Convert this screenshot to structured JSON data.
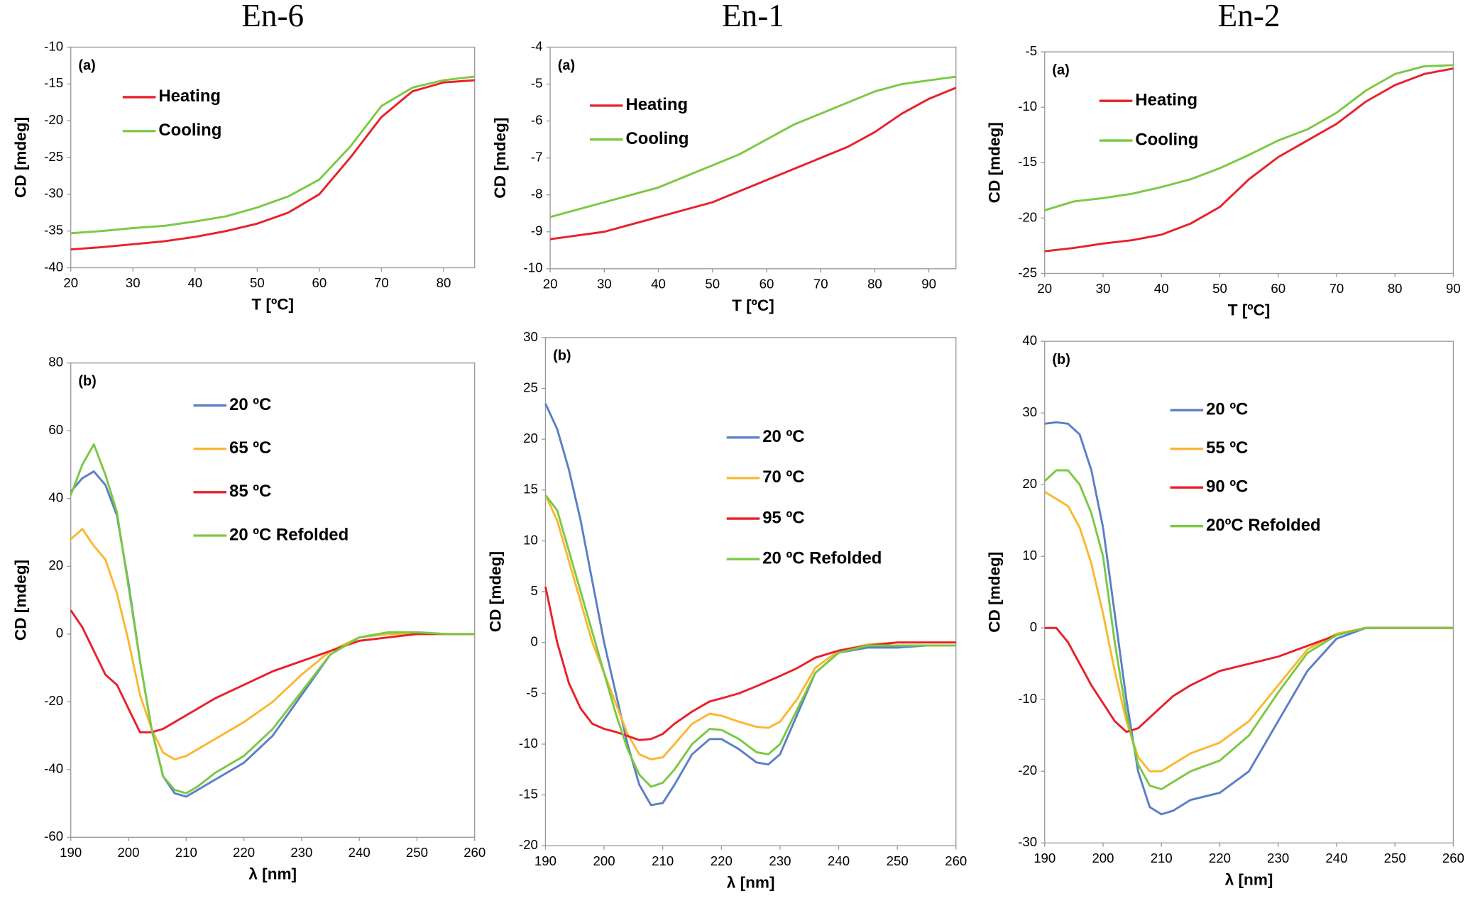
{
  "chart_data": [
    {
      "type": "line",
      "title": "En-6",
      "panel": "(a)",
      "x_label": "T [ºC]",
      "y_label": "CD [mdeg]",
      "x": [
        20,
        25,
        30,
        35,
        40,
        45,
        50,
        55,
        60,
        65,
        70,
        75,
        80,
        85
      ],
      "series": [
        {
          "name": "Heating",
          "color": "#e8212a",
          "values": [
            -37.5,
            -37.2,
            -36.8,
            -36.4,
            -35.8,
            -35,
            -34,
            -32.5,
            -30,
            -25,
            -19.5,
            -16,
            -14.8,
            -14.5
          ]
        },
        {
          "name": "Cooling",
          "color": "#7ac943",
          "values": [
            -35.3,
            -35,
            -34.6,
            -34.3,
            -33.7,
            -33,
            -31.8,
            -30.3,
            -28,
            -23.5,
            -18,
            -15.5,
            -14.5,
            -14
          ]
        }
      ],
      "xlim": [
        20,
        85
      ],
      "ylim": [
        -40,
        -10
      ],
      "xticks": [
        20,
        30,
        40,
        50,
        60,
        70,
        80
      ],
      "yticks": [
        -40,
        -35,
        -30,
        -25,
        -20,
        -15,
        -10
      ]
    },
    {
      "type": "line",
      "title": "En-1",
      "panel": "(a)",
      "x_label": "T [ºC]",
      "y_label": "CD [mdeg]",
      "x": [
        20,
        25,
        30,
        35,
        40,
        45,
        50,
        55,
        60,
        65,
        70,
        75,
        80,
        85,
        90,
        95
      ],
      "series": [
        {
          "name": "Heating",
          "color": "#e8212a",
          "values": [
            -9.2,
            -9.1,
            -9.0,
            -8.8,
            -8.6,
            -8.4,
            -8.2,
            -7.9,
            -7.6,
            -7.3,
            -7.0,
            -6.7,
            -6.3,
            -5.8,
            -5.4,
            -5.1
          ]
        },
        {
          "name": "Cooling",
          "color": "#7ac943",
          "values": [
            -8.6,
            -8.4,
            -8.2,
            -8.0,
            -7.8,
            -7.5,
            -7.2,
            -6.9,
            -6.5,
            -6.1,
            -5.8,
            -5.5,
            -5.2,
            -5.0,
            -4.9,
            -4.8
          ]
        }
      ],
      "xlim": [
        20,
        95
      ],
      "ylim": [
        -10,
        -4
      ],
      "xticks": [
        20,
        30,
        40,
        50,
        60,
        70,
        80,
        90
      ],
      "yticks": [
        -10,
        -9,
        -8,
        -7,
        -6,
        -5,
        -4
      ]
    },
    {
      "type": "line",
      "title": "En-2",
      "panel": "(a)",
      "x_label": "T [ºC]",
      "y_label": "CD [mdeg]",
      "x": [
        20,
        25,
        30,
        35,
        40,
        45,
        50,
        55,
        60,
        65,
        70,
        75,
        80,
        85,
        90
      ],
      "series": [
        {
          "name": "Heating",
          "color": "#e8212a",
          "values": [
            -23,
            -22.7,
            -22.3,
            -22,
            -21.5,
            -20.5,
            -19,
            -16.5,
            -14.5,
            -13,
            -11.5,
            -9.5,
            -8,
            -7,
            -6.5
          ]
        },
        {
          "name": "Cooling",
          "color": "#7ac943",
          "values": [
            -19.3,
            -18.5,
            -18.2,
            -17.8,
            -17.2,
            -16.5,
            -15.5,
            -14.3,
            -13,
            -12,
            -10.5,
            -8.5,
            -7,
            -6.3,
            -6.2
          ]
        }
      ],
      "xlim": [
        20,
        90
      ],
      "ylim": [
        -25,
        -5
      ],
      "xticks": [
        20,
        30,
        40,
        50,
        60,
        70,
        80,
        90
      ],
      "yticks": [
        -25,
        -20,
        -15,
        -10,
        -5
      ]
    },
    {
      "type": "line",
      "panel": "(b)",
      "x_label": "λ [nm]",
      "y_label": "CD [mdeg]",
      "x": [
        190,
        192,
        194,
        196,
        198,
        200,
        202,
        204,
        206,
        208,
        210,
        212,
        215,
        220,
        225,
        230,
        235,
        240,
        245,
        250,
        255,
        260
      ],
      "series": [
        {
          "name": "20 ºC",
          "color": "#5b7fc7",
          "values": [
            42,
            46,
            48,
            44,
            35,
            15,
            -8,
            -28,
            -42,
            -47,
            -48,
            -46,
            -43,
            -38,
            -30,
            -18,
            -6,
            -1,
            0.5,
            0.5,
            0,
            0
          ]
        },
        {
          "name": "65 ºC",
          "color": "#fbb731",
          "values": [
            28,
            31,
            26,
            22,
            12,
            -2,
            -18,
            -28,
            -35,
            -37,
            -36,
            -34,
            -31,
            -26,
            -20,
            -12,
            -5,
            -1,
            0,
            0,
            0,
            0
          ]
        },
        {
          "name": "85 ºC",
          "color": "#e8212a",
          "values": [
            7,
            2,
            -5,
            -12,
            -15,
            -22,
            -29,
            -29,
            -28,
            -26,
            -24,
            -22,
            -19,
            -15,
            -11,
            -8,
            -5,
            -2,
            -1,
            0,
            0,
            0
          ]
        },
        {
          "name": "20 ºC Refolded",
          "color": "#7ac943",
          "values": [
            41,
            50,
            56,
            47,
            36,
            14,
            -8,
            -28,
            -42,
            -46,
            -47,
            -45,
            -41,
            -36,
            -28,
            -17,
            -6,
            -1,
            0.5,
            0.5,
            0,
            0
          ]
        }
      ],
      "xlim": [
        190,
        260
      ],
      "ylim": [
        -60,
        80
      ],
      "xticks": [
        190,
        200,
        210,
        220,
        230,
        240,
        250,
        260
      ],
      "yticks": [
        -60,
        -40,
        -20,
        0,
        20,
        40,
        60,
        80
      ]
    },
    {
      "type": "line",
      "panel": "(b)",
      "x_label": "λ [nm]",
      "y_label": "CD [mdeg]",
      "x": [
        190,
        192,
        194,
        196,
        198,
        200,
        202,
        204,
        206,
        208,
        210,
        212,
        215,
        218,
        220,
        223,
        226,
        228,
        230,
        233,
        236,
        240,
        245,
        250,
        255,
        260
      ],
      "series": [
        {
          "name": "20 ºC",
          "color": "#5b7fc7",
          "values": [
            23.5,
            21,
            17,
            12,
            6,
            0,
            -5,
            -10,
            -14,
            -16,
            -15.8,
            -14,
            -11,
            -9.5,
            -9.5,
            -10.5,
            -11.8,
            -12,
            -11,
            -7,
            -3,
            -1,
            -0.5,
            -0.5,
            -0.3,
            -0.3
          ]
        },
        {
          "name": "70 ºC",
          "color": "#fbb731",
          "values": [
            14.5,
            12,
            8,
            4,
            0,
            -3,
            -6,
            -9,
            -11,
            -11.5,
            -11.3,
            -10,
            -8,
            -7,
            -7.2,
            -7.8,
            -8.3,
            -8.4,
            -7.8,
            -5.5,
            -2.5,
            -0.8,
            -0.2,
            0,
            0,
            0
          ]
        },
        {
          "name": "95 ºC",
          "color": "#e8212a",
          "values": [
            5.5,
            0,
            -4,
            -6.5,
            -8,
            -8.5,
            -8.8,
            -9.2,
            -9.6,
            -9.5,
            -9,
            -8,
            -6.8,
            -5.8,
            -5.5,
            -5,
            -4.3,
            -3.8,
            -3.3,
            -2.5,
            -1.5,
            -0.8,
            -0.3,
            0,
            0,
            0
          ]
        },
        {
          "name": "20 ºC Refolded",
          "color": "#7ac943",
          "values": [
            14.5,
            13,
            9,
            5,
            1,
            -3,
            -7,
            -10.5,
            -13,
            -14.2,
            -13.8,
            -12.5,
            -10,
            -8.5,
            -8.6,
            -9.5,
            -10.8,
            -11,
            -10,
            -6.5,
            -3,
            -1,
            -0.3,
            -0.3,
            -0.3,
            -0.3
          ]
        }
      ],
      "xlim": [
        190,
        260
      ],
      "ylim": [
        -20,
        30
      ],
      "xticks": [
        190,
        200,
        210,
        220,
        230,
        240,
        250,
        260
      ],
      "yticks": [
        -20,
        -15,
        -10,
        -5,
        0,
        5,
        10,
        15,
        20,
        25,
        30
      ]
    },
    {
      "type": "line",
      "panel": "(b)",
      "x_label": "λ [nm]",
      "y_label": "CD [mdeg]",
      "x": [
        190,
        192,
        194,
        196,
        198,
        200,
        202,
        204,
        206,
        208,
        210,
        212,
        215,
        220,
        225,
        230,
        235,
        240,
        245,
        250,
        255,
        260
      ],
      "series": [
        {
          "name": "20 ºC",
          "color": "#5b7fc7",
          "values": [
            28.5,
            28.7,
            28.5,
            27,
            22,
            14,
            2,
            -10,
            -20,
            -25,
            -26,
            -25.5,
            -24,
            -23,
            -20,
            -13,
            -6,
            -1.5,
            0,
            0,
            0,
            0
          ]
        },
        {
          "name": "55 ºC",
          "color": "#fbb731",
          "values": [
            19,
            18,
            17,
            14,
            9,
            2,
            -6,
            -13,
            -18,
            -20,
            -20,
            -19,
            -17.5,
            -16,
            -13,
            -8,
            -3,
            -0.8,
            0,
            0,
            0,
            0
          ]
        },
        {
          "name": "90 ºC",
          "color": "#e8212a",
          "values": [
            0,
            0,
            -2,
            -5,
            -8,
            -10.5,
            -13,
            -14.5,
            -14,
            -12.5,
            -11,
            -9.5,
            -8,
            -6,
            -5,
            -4,
            -2.5,
            -1,
            0,
            0,
            0,
            0
          ]
        },
        {
          "name": "20ºC Refolded",
          "color": "#7ac943",
          "values": [
            20.5,
            22,
            22,
            20,
            16,
            10,
            -2,
            -12,
            -19,
            -22,
            -22.5,
            -21.5,
            -20,
            -18.5,
            -15,
            -9,
            -3.5,
            -1,
            0,
            0,
            0,
            0
          ]
        }
      ],
      "xlim": [
        190,
        260
      ],
      "ylim": [
        -30,
        40
      ],
      "xticks": [
        190,
        200,
        210,
        220,
        230,
        240,
        250,
        260
      ],
      "yticks": [
        -30,
        -20,
        -10,
        0,
        10,
        20,
        30,
        40
      ]
    }
  ]
}
